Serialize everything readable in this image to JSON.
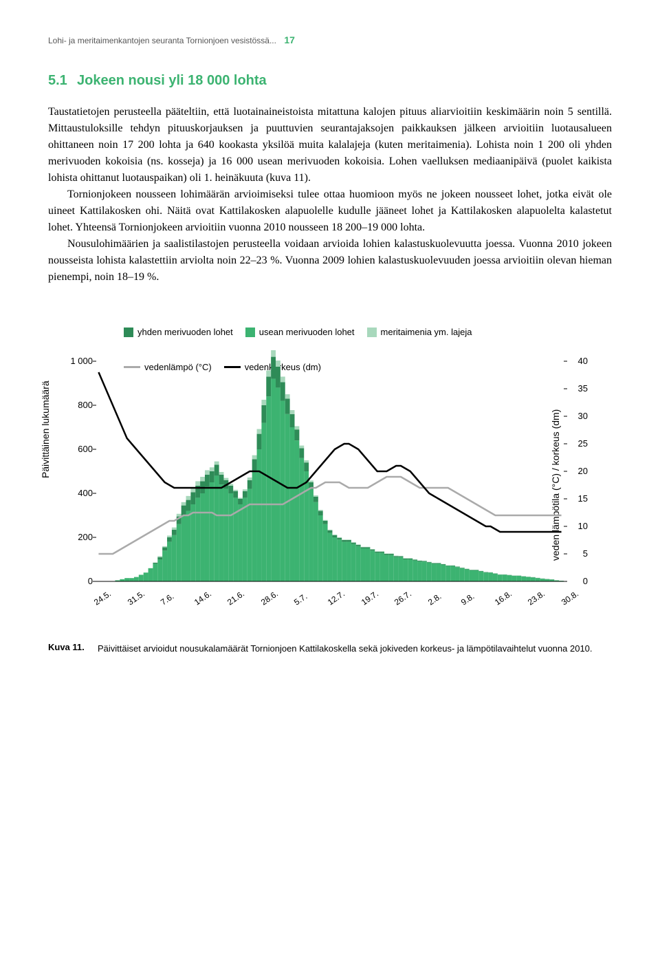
{
  "header": {
    "running_title": "Lohi- ja meritaimenkantojen seuranta Tornionjoen vesistössä...",
    "page_number": "17"
  },
  "section": {
    "number": "5.1",
    "title": "Jokeen nousi yli 18 000 lohta"
  },
  "paragraphs": {
    "p1": "Taustatietojen perusteella pääteltiin, että luotainaineistoista mitattuna kalojen pituus aliarvioitiin keskimäärin noin 5 sentillä. Mittaustuloksille tehdyn pituuskorjauksen ja puuttuvien seurantajaksojen paikkauksen jälkeen arvioitiin luotausalueen ohittaneen noin 17 200 lohta ja 640 kookasta yksilöä muita kalalajeja (kuten meritaimenia). Lohista noin 1 200 oli yhden merivuoden kokoisia (ns. kosseja) ja 16 000 usean merivuoden kokoisia. Lohen vaelluksen mediaanipäivä (puolet kaikista lohista ohittanut luotauspaikan) oli 1. heinäkuuta (kuva 11).",
    "p2": "Tornionjokeen nousseen lohimäärän arvioimiseksi tulee ottaa huomioon myös ne jokeen nousseet lohet, jotka eivät ole uineet Kattilakosken ohi. Näitä ovat Kattilakosken alapuolelle kudulle jääneet lohet ja Kattilakosken alapuolelta kalastetut lohet. Yhteensä Tornionjokeen arvioitiin vuonna 2010 nousseen 18 200–19 000 lohta.",
    "p3": "Nousulohimäärien ja saalistilastojen perusteella voidaan arvioida lohien kalastuskuolevuutta joessa. Vuonna 2010 jokeen nousseista lohista kalastettiin arviolta noin 22–23 %. Vuonna 2009 lohien kalastuskuolevuuden joessa arvioitiin olevan hieman pienempi, noin 18–19 %."
  },
  "chart": {
    "type": "bar+line",
    "legend": {
      "series1": "yhden merivuoden lohet",
      "series2": "usean merivuoden lohet",
      "series3": "meritaimenia ym. lajeja",
      "line1": "vedenlämpö (°C)",
      "line2": "vedenkorkeus (dm)"
    },
    "colors": {
      "series1": "#2e8b57",
      "series2": "#3cb371",
      "series3": "#a8d8bc",
      "temp_line": "#aaaaaa",
      "height_line": "#000000",
      "background": "#ffffff"
    },
    "y_left": {
      "label": "Päivittäinen lukumäärä",
      "ticks": [
        0,
        200,
        400,
        600,
        800,
        1000
      ],
      "lim": [
        0,
        1000
      ]
    },
    "y_right": {
      "label": "veden lämpötila (°C) / korkeus (dm)",
      "ticks": [
        0,
        5,
        10,
        15,
        20,
        25,
        30,
        35,
        40
      ],
      "lim": [
        0,
        40
      ]
    },
    "x_ticks": [
      "24.5.",
      "31.5.",
      "7.6.",
      "14.6.",
      "21.6.",
      "28.6.",
      "5.7.",
      "12.7.",
      "19.7.",
      "26.7.",
      "2.8.",
      "9.8.",
      "16.8.",
      "23.8.",
      "30.8."
    ],
    "bars_multi": [
      0,
      0,
      0,
      0,
      5,
      10,
      15,
      15,
      20,
      30,
      40,
      60,
      80,
      100,
      140,
      180,
      210,
      260,
      300,
      320,
      350,
      380,
      400,
      430,
      450,
      480,
      440,
      420,
      400,
      380,
      350,
      380,
      420,
      500,
      600,
      720,
      840,
      920,
      880,
      820,
      760,
      700,
      640,
      560,
      500,
      420,
      360,
      300,
      260,
      220,
      200,
      190,
      180,
      180,
      170,
      160,
      150,
      150,
      140,
      130,
      130,
      120,
      120,
      110,
      110,
      100,
      100,
      95,
      90,
      90,
      85,
      80,
      80,
      75,
      70,
      70,
      65,
      60,
      55,
      50,
      50,
      45,
      40,
      40,
      35,
      30,
      30,
      28,
      25,
      25,
      22,
      20,
      18,
      15,
      12,
      10,
      8,
      5,
      3
    ],
    "bars_single": [
      0,
      0,
      0,
      0,
      0,
      0,
      0,
      0,
      0,
      0,
      0,
      0,
      5,
      10,
      15,
      20,
      25,
      35,
      45,
      50,
      55,
      55,
      55,
      55,
      50,
      50,
      45,
      40,
      35,
      30,
      25,
      30,
      40,
      55,
      70,
      80,
      90,
      100,
      95,
      85,
      70,
      60,
      50,
      45,
      40,
      30,
      25,
      20,
      15,
      12,
      10,
      8,
      8,
      8,
      6,
      6,
      5,
      5,
      5,
      5,
      5,
      5,
      5,
      5,
      4,
      4,
      4,
      4,
      4,
      3,
      3,
      3,
      3,
      3,
      2,
      2,
      2,
      2,
      2,
      2,
      2,
      2,
      2,
      1,
      1,
      1,
      1,
      1,
      1,
      1,
      1,
      1,
      1,
      1,
      1,
      1,
      1,
      0,
      0
    ],
    "bars_other": [
      0,
      0,
      0,
      0,
      0,
      0,
      0,
      0,
      0,
      0,
      0,
      0,
      0,
      5,
      5,
      8,
      10,
      12,
      15,
      18,
      20,
      20,
      20,
      20,
      18,
      15,
      12,
      10,
      8,
      6,
      5,
      8,
      12,
      18,
      22,
      25,
      28,
      30,
      28,
      25,
      20,
      18,
      15,
      12,
      10,
      8,
      6,
      5,
      4,
      3,
      3,
      2,
      2,
      2,
      2,
      2,
      2,
      2,
      2,
      2,
      2,
      2,
      2,
      2,
      2,
      2,
      2,
      1,
      1,
      1,
      1,
      1,
      1,
      1,
      1,
      1,
      1,
      1,
      1,
      1,
      1,
      1,
      1,
      1,
      1,
      1,
      1,
      1,
      1,
      1,
      1,
      1,
      1,
      0,
      0,
      0,
      0,
      0,
      0
    ],
    "height_line_pts": [
      38,
      36,
      34,
      32,
      30,
      28,
      26,
      25,
      24,
      23,
      22,
      21,
      20,
      19,
      18,
      17.5,
      17,
      17,
      17,
      17,
      17,
      17,
      17,
      17,
      17,
      17,
      17,
      17.5,
      18,
      18.5,
      19,
      19.5,
      20,
      20,
      20,
      19.5,
      19,
      18.5,
      18,
      17.5,
      17,
      17,
      17,
      17.5,
      18,
      19,
      20,
      21,
      22,
      23,
      24,
      24.5,
      25,
      25,
      24.5,
      24,
      23,
      22,
      21,
      20,
      20,
      20,
      20.5,
      21,
      21,
      20.5,
      20,
      19,
      18,
      17,
      16,
      15.5,
      15,
      14.5,
      14,
      13.5,
      13,
      12.5,
      12,
      11.5,
      11,
      10.5,
      10,
      10,
      9.5,
      9,
      9,
      9,
      9,
      9,
      9,
      9,
      9,
      9,
      9,
      9,
      9,
      9,
      9
    ],
    "temp_line_pts": [
      5,
      5,
      5,
      5,
      5.5,
      6,
      6.5,
      7,
      7.5,
      8,
      8.5,
      9,
      9.5,
      10,
      10.5,
      11,
      11,
      11.5,
      12,
      12,
      12.5,
      12.5,
      12.5,
      12.5,
      12.5,
      12,
      12,
      12,
      12,
      12.5,
      13,
      13.5,
      14,
      14,
      14,
      14,
      14,
      14,
      14,
      14,
      14.5,
      15,
      15.5,
      16,
      16.5,
      17,
      17,
      17.5,
      18,
      18,
      18,
      18,
      17.5,
      17,
      17,
      17,
      17,
      17,
      17.5,
      18,
      18.5,
      19,
      19,
      19,
      19,
      18.5,
      18,
      17.5,
      17,
      17,
      17,
      17,
      17,
      17,
      17,
      16.5,
      16,
      15.5,
      15,
      14.5,
      14,
      13.5,
      13,
      12.5,
      12,
      12,
      12,
      12,
      12,
      12,
      12,
      12,
      12,
      12,
      12,
      12,
      12,
      12,
      12
    ],
    "line_width": 2.5,
    "bar_gap": 0
  },
  "figure": {
    "label": "Kuva 11.",
    "caption": "Päivittäiset arvioidut nousukalamäärät Tornionjoen Kattilakoskella sekä jokiveden korkeus- ja lämpötilavaihtelut vuonna 2010."
  }
}
